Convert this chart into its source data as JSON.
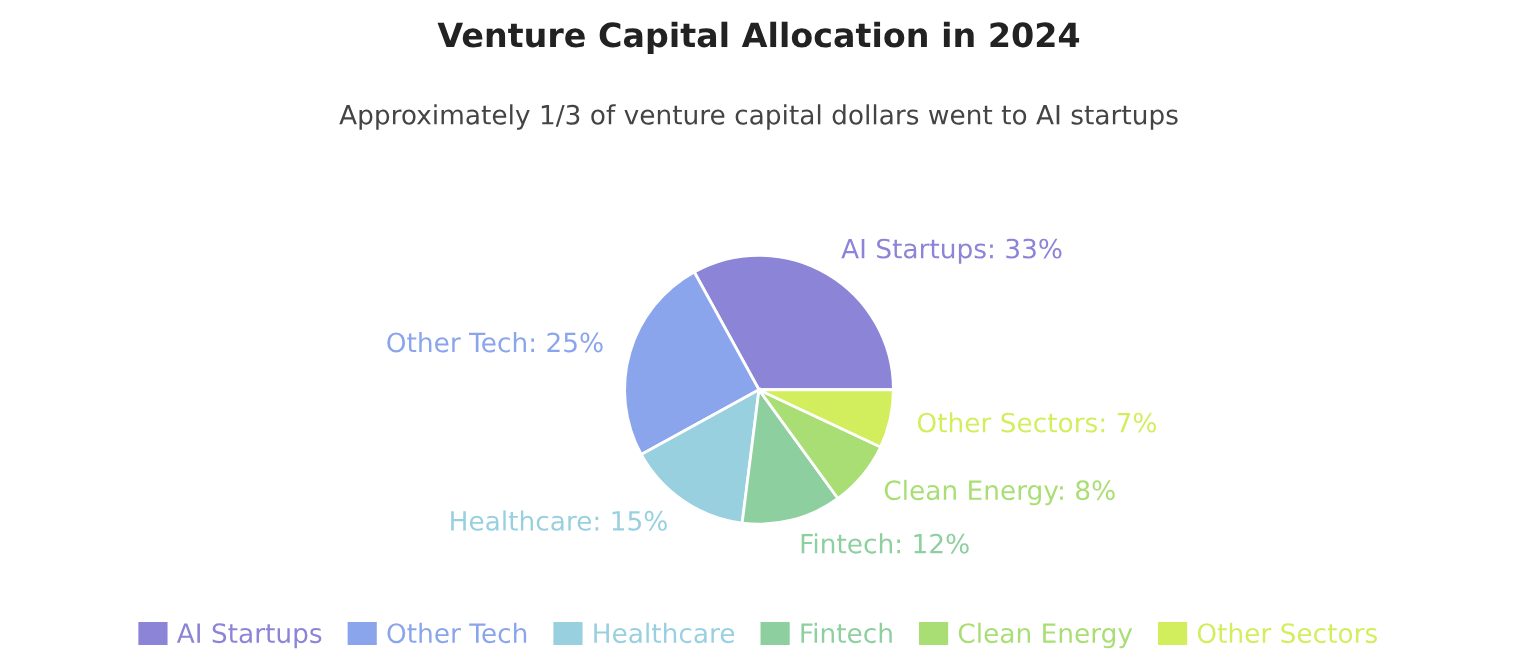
{
  "chart_data": {
    "type": "pie",
    "title": "Venture Capital Allocation in 2024",
    "subtitle": "Approximately 1/3 of venture capital dollars went to AI startups",
    "categories": [
      "AI Startups",
      "Other Tech",
      "Healthcare",
      "Fintech",
      "Clean Energy",
      "Other Sectors"
    ],
    "values": [
      33,
      25,
      15,
      12,
      8,
      7
    ],
    "colors": [
      "#8b84d7",
      "#8aa5ec",
      "#98d0e0",
      "#8dcf9e",
      "#a9de74",
      "#d2ee5d"
    ],
    "value_labels": [
      "AI Startups: 33%",
      "Other Tech: 25%",
      "Healthcare: 15%",
      "Fintech: 12%",
      "Clean Energy: 8%",
      "Other Sectors: 7%"
    ],
    "legend": "bottom"
  }
}
